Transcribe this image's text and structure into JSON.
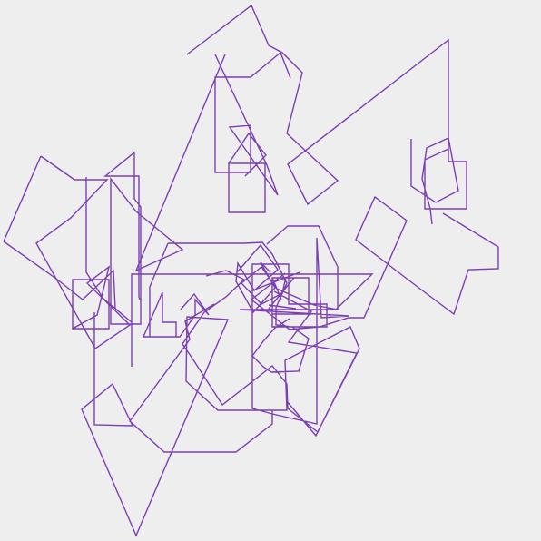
{
  "colors": {
    "background": "#eeeeee",
    "stroke": "#7b3fb3"
  }
}
